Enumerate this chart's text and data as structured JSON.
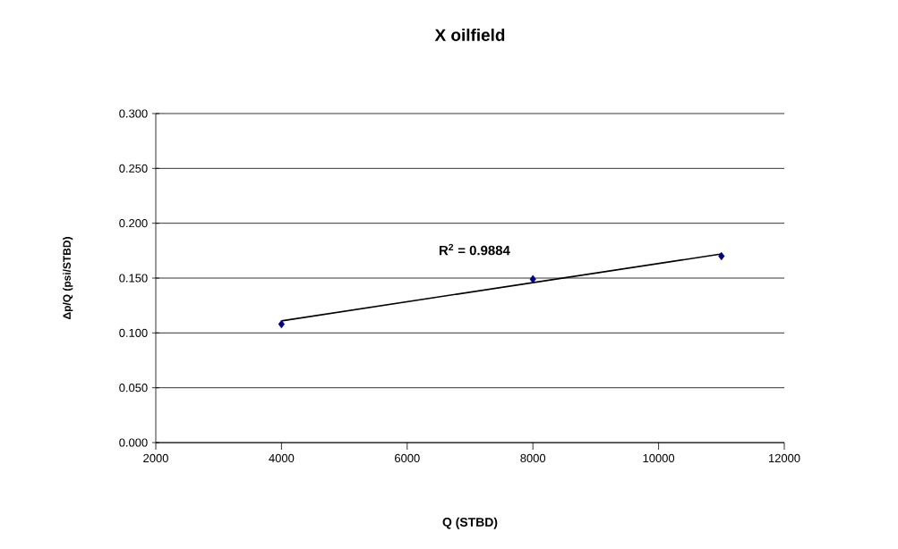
{
  "chart_data": {
    "type": "scatter",
    "title": "X oilfield",
    "xlabel": "Q (STBD)",
    "ylabel": "Δp/Q (psi/STBD)",
    "xlim": [
      2000,
      12000
    ],
    "xticks": [
      2000,
      4000,
      6000,
      8000,
      10000,
      12000
    ],
    "ylim": [
      0,
      0.3
    ],
    "yticks": [
      {
        "value": 0,
        "label": "0.000"
      },
      {
        "value": 0.05,
        "label": "0.050"
      },
      {
        "value": 0.1,
        "label": "0.100"
      },
      {
        "value": 0.15,
        "label": "0.150"
      },
      {
        "value": 0.2,
        "label": "0.200"
      },
      {
        "value": 0.25,
        "label": "0.250"
      },
      {
        "value": 0.3,
        "label": "0.300"
      }
    ],
    "grid": "y",
    "series": [
      {
        "color": "#000080",
        "marker": "diamond",
        "x": [
          4000,
          8000,
          11000
        ],
        "values": [
          0.108,
          0.149,
          0.17
        ]
      },
      {
        "type": "line",
        "color": "#000000",
        "marker": "none",
        "line_style": "solid",
        "x": [
          4000,
          11000
        ],
        "values": [
          0.111,
          0.172
        ]
      }
    ],
    "annotations": [
      "R$^{2}$ = 0.9884"
    ]
  }
}
